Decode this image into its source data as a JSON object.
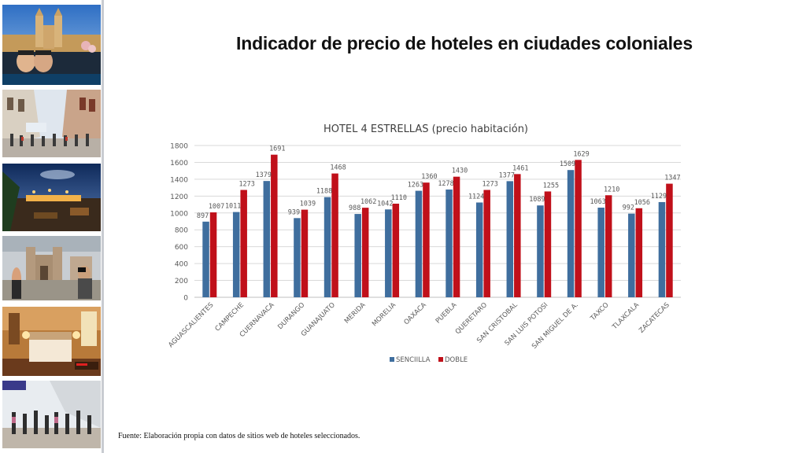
{
  "slide": {
    "title": "Indicador de precio de hoteles en ciudades coloniales",
    "source": "Fuente: Elaboración propia con datos de sitios web de hoteles seleccionados."
  },
  "sidebar": {
    "photos": [
      {
        "name": "photo-pool-cathedral-icon"
      },
      {
        "name": "photo-colonial-street-icon"
      },
      {
        "name": "photo-terrace-night-icon"
      },
      {
        "name": "photo-church-plaza-icon"
      },
      {
        "name": "photo-hotel-room-icon"
      },
      {
        "name": "photo-walkway-crowd-icon"
      }
    ]
  },
  "colors": {
    "senciilla": "#3f6e9e",
    "doble": "#c0101a",
    "grid": "#d9d9d9",
    "text": "#595959"
  },
  "chart_data": {
    "type": "bar",
    "title": "HOTEL 4 ESTRELLAS (precio habitación)",
    "categories": [
      "AGUASCALIENTES",
      "CAMPECHE",
      "CUERNAVACA",
      "DURANGO",
      "GUANAJUATO",
      "MERIDA",
      "MORELIA",
      "OAXACA",
      "PUEBLA",
      "QUERETARO",
      "SAN CRISTOBAL",
      "SAN LUIS POTOSI",
      "SAN MIGUEL DE A.",
      "TAXCO",
      "TLAXCALA",
      "ZACATECAS"
    ],
    "series": [
      {
        "name": "SENCIILLA",
        "values": [
          897,
          1011,
          1379,
          939,
          1188,
          988,
          1042,
          1263,
          1278,
          1124,
          1377,
          1089,
          1509,
          1063,
          992,
          1129
        ]
      },
      {
        "name": "DOBLE",
        "values": [
          1007,
          1273,
          1691,
          1039,
          1468,
          1062,
          1110,
          1360,
          1430,
          1273,
          1461,
          1255,
          1629,
          1210,
          1056,
          1347
        ]
      }
    ],
    "ylim": [
      0,
      1800
    ],
    "yticks": [
      0,
      200,
      400,
      600,
      800,
      1000,
      1200,
      1400,
      1600,
      1800
    ],
    "grid": true,
    "legend": "bottom"
  }
}
